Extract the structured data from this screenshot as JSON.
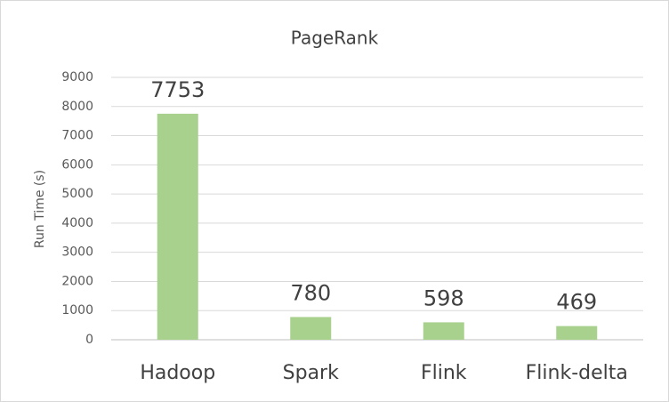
{
  "chart_data": {
    "type": "bar",
    "title": "PageRank",
    "y_label": "Run Time (s)",
    "categories": [
      "Hadoop",
      "Spark",
      "Flink",
      "Flink-delta"
    ],
    "values": [
      7753,
      780,
      598,
      469
    ],
    "color": "#a9d18e",
    "ylim": [
      0,
      9000
    ],
    "yticks": [
      0,
      1000,
      2000,
      3000,
      4000,
      5000,
      6000,
      7000,
      8000,
      9000
    ],
    "grid": true
  }
}
